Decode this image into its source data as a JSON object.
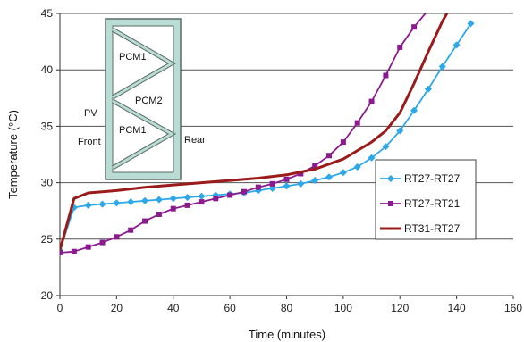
{
  "chart_data": {
    "type": "line",
    "xlabel": "Time (minutes)",
    "ylabel": "Temperature (°C)",
    "xlim": [
      0,
      160
    ],
    "ylim": [
      20,
      45
    ],
    "x_ticks": [
      0,
      20,
      40,
      60,
      80,
      100,
      120,
      140,
      160
    ],
    "y_ticks": [
      20,
      25,
      30,
      35,
      40,
      45
    ],
    "grid": "horizontal",
    "legend_position": "right",
    "series": [
      {
        "name": "RT27-RT27",
        "color": "#2ea8e8",
        "marker": "diamond",
        "points": [
          [
            0,
            24.0
          ],
          [
            5,
            27.8
          ],
          [
            10,
            28.0
          ],
          [
            15,
            28.1
          ],
          [
            20,
            28.2
          ],
          [
            25,
            28.3
          ],
          [
            30,
            28.4
          ],
          [
            35,
            28.5
          ],
          [
            40,
            28.6
          ],
          [
            45,
            28.7
          ],
          [
            50,
            28.8
          ],
          [
            55,
            28.9
          ],
          [
            60,
            29.0
          ],
          [
            65,
            29.1
          ],
          [
            70,
            29.3
          ],
          [
            75,
            29.5
          ],
          [
            80,
            29.7
          ],
          [
            85,
            29.9
          ],
          [
            90,
            30.2
          ],
          [
            95,
            30.5
          ],
          [
            100,
            30.9
          ],
          [
            105,
            31.4
          ],
          [
            110,
            32.2
          ],
          [
            115,
            33.2
          ],
          [
            120,
            34.6
          ],
          [
            125,
            36.4
          ],
          [
            130,
            38.3
          ],
          [
            135,
            40.3
          ],
          [
            140,
            42.2
          ],
          [
            145,
            44.1
          ]
        ]
      },
      {
        "name": "RT27-RT21",
        "color": "#8b1a8f",
        "marker": "square",
        "points": [
          [
            0,
            23.8
          ],
          [
            5,
            23.9
          ],
          [
            10,
            24.3
          ],
          [
            15,
            24.7
          ],
          [
            20,
            25.2
          ],
          [
            25,
            25.8
          ],
          [
            30,
            26.6
          ],
          [
            35,
            27.2
          ],
          [
            40,
            27.7
          ],
          [
            45,
            28.0
          ],
          [
            50,
            28.3
          ],
          [
            55,
            28.6
          ],
          [
            60,
            28.9
          ],
          [
            65,
            29.2
          ],
          [
            70,
            29.6
          ],
          [
            75,
            29.9
          ],
          [
            80,
            30.3
          ],
          [
            85,
            30.8
          ],
          [
            90,
            31.5
          ],
          [
            95,
            32.4
          ],
          [
            100,
            33.6
          ],
          [
            105,
            35.3
          ],
          [
            110,
            37.2
          ],
          [
            115,
            39.5
          ],
          [
            120,
            42.0
          ],
          [
            125,
            43.8
          ],
          [
            130,
            45.3
          ]
        ]
      },
      {
        "name": "RT31-RT27",
        "color": "#9b1a1a",
        "marker": "none",
        "points": [
          [
            0,
            24.0
          ],
          [
            5,
            28.6
          ],
          [
            10,
            29.1
          ],
          [
            20,
            29.3
          ],
          [
            30,
            29.6
          ],
          [
            40,
            29.8
          ],
          [
            50,
            30.0
          ],
          [
            60,
            30.2
          ],
          [
            70,
            30.4
          ],
          [
            80,
            30.7
          ],
          [
            90,
            31.2
          ],
          [
            100,
            32.1
          ],
          [
            110,
            33.6
          ],
          [
            115,
            34.6
          ],
          [
            120,
            36.2
          ],
          [
            125,
            38.8
          ],
          [
            130,
            41.6
          ],
          [
            135,
            44.3
          ],
          [
            140,
            46.5
          ]
        ]
      }
    ],
    "inset_labels": {
      "pcm1_top": "PCM1",
      "pcm2": "PCM2",
      "pcm1_bottom": "PCM1",
      "pv": "PV",
      "front": "Front",
      "rear": "Rear"
    }
  }
}
